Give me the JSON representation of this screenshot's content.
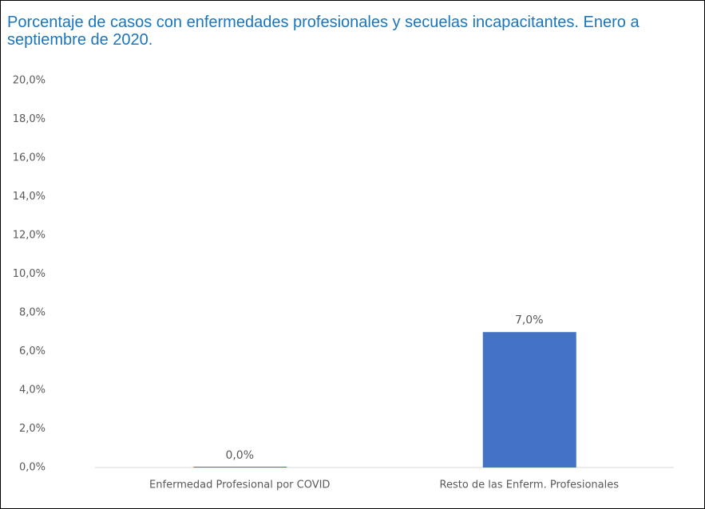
{
  "chart_data": {
    "type": "bar",
    "title": "Porcentaje de casos con enfermedades profesionales y secuelas incapacitantes. Enero a septiembre de 2020.",
    "categories": [
      "Enfermedad Profesional por COVID",
      "Resto de las Enferm. Profesionales"
    ],
    "values": [
      0,
      7.0
    ],
    "value_labels": [
      "0,0%",
      "7,0%"
    ],
    "color": "#4472c4",
    "ylim": [
      0,
      20
    ],
    "yticks": [
      {
        "value": 0,
        "label": "0,0%"
      },
      {
        "value": 2,
        "label": "2,0%"
      },
      {
        "value": 4,
        "label": "4,0%"
      },
      {
        "value": 6,
        "label": "6,0%"
      },
      {
        "value": 8,
        "label": "8,0%"
      },
      {
        "value": 10,
        "label": "10,0%"
      },
      {
        "value": 12,
        "label": "12,0%"
      },
      {
        "value": 14,
        "label": "14,0%"
      },
      {
        "value": 16,
        "label": "16,0%"
      },
      {
        "value": 18,
        "label": "18,0%"
      },
      {
        "value": 20,
        "label": "20,0%"
      }
    ],
    "grid": false
  }
}
